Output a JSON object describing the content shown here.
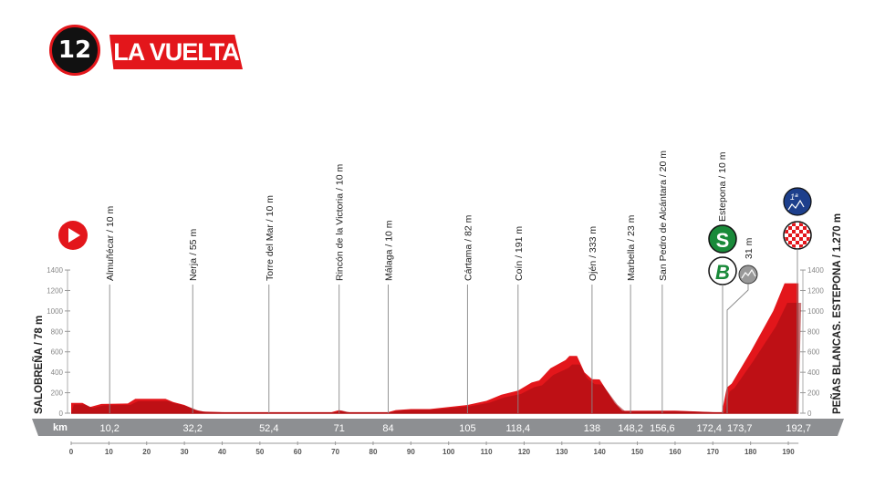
{
  "header": {
    "stage_number": "12",
    "brand": "LA VUELTA"
  },
  "chart_data": {
    "type": "area",
    "title": "",
    "xlabel": "km",
    "xlim": [
      0,
      192.7
    ],
    "ylim": [
      0,
      1400
    ],
    "x_ticks": [
      0,
      10,
      20,
      30,
      40,
      50,
      60,
      70,
      80,
      90,
      100,
      110,
      120,
      130,
      140,
      150,
      160,
      170,
      180,
      190
    ],
    "y_ticks": [
      0,
      200,
      400,
      600,
      800,
      1000,
      1200,
      1400
    ],
    "start_label": "SALOBREÑA / 78 m",
    "finish_label": "PEÑAS BLANCAS. ESTEPONA / 1.270 m",
    "profile": {
      "x": [
        0,
        3,
        5,
        8,
        15,
        17,
        25,
        27,
        30,
        33,
        35,
        40,
        52,
        69,
        71,
        73,
        84,
        86,
        90,
        95,
        100,
        105,
        110,
        114,
        118.4,
        122,
        124,
        127,
        131,
        132,
        134,
        136,
        138,
        140,
        144,
        146,
        160,
        170,
        172.4,
        173.7,
        175,
        180,
        186,
        189,
        192.7
      ],
      "y": [
        100,
        100,
        60,
        90,
        95,
        140,
        140,
        110,
        80,
        30,
        15,
        10,
        10,
        10,
        30,
        10,
        10,
        30,
        40,
        40,
        60,
        80,
        120,
        180,
        220,
        300,
        320,
        440,
        520,
        560,
        560,
        400,
        333,
        330,
        100,
        23,
        25,
        10,
        10,
        250,
        290,
        600,
        1000,
        1270,
        1270
      ]
    },
    "waypoints": [
      {
        "km": 10.2,
        "km_label": "10,2",
        "label": "Almuñécar / 10 m"
      },
      {
        "km": 32.2,
        "km_label": "32,2",
        "label": "Nerja / 55 m"
      },
      {
        "km": 52.4,
        "km_label": "52,4",
        "label": "Torre del Mar / 10 m"
      },
      {
        "km": 71,
        "km_label": "71",
        "label": "Rincón de la Victoria / 10 m"
      },
      {
        "km": 84,
        "km_label": "84",
        "label": "Málaga / 10 m"
      },
      {
        "km": 105,
        "km_label": "105",
        "label": "Cártama / 82 m"
      },
      {
        "km": 118.4,
        "km_label": "118,4",
        "label": "Coín / 191 m"
      },
      {
        "km": 138,
        "km_label": "138",
        "label": "Ojén / 333 m"
      },
      {
        "km": 148.2,
        "km_label": "148,2",
        "label": "Marbella / 23 m"
      },
      {
        "km": 156.6,
        "km_label": "156,6",
        "label": "San Pedro de Alcántara / 20 m"
      },
      {
        "km": 172.4,
        "km_label": "172,4",
        "label": "Estepona / 10 m"
      },
      {
        "km": 173.7,
        "km_label": "173,7",
        "label": ""
      },
      {
        "km": 192.7,
        "km_label": "192,7",
        "label": ""
      }
    ],
    "markers": {
      "sprint": "S",
      "bonus": "B",
      "climb_altitude": "31 m",
      "kom_category": "1ª"
    },
    "colors": {
      "profile": "#e3161b",
      "profile_dark": "#a00d10",
      "band": "#8d8f92",
      "kom": "#1d3f8c",
      "sprint": "#1a8a3a"
    }
  }
}
